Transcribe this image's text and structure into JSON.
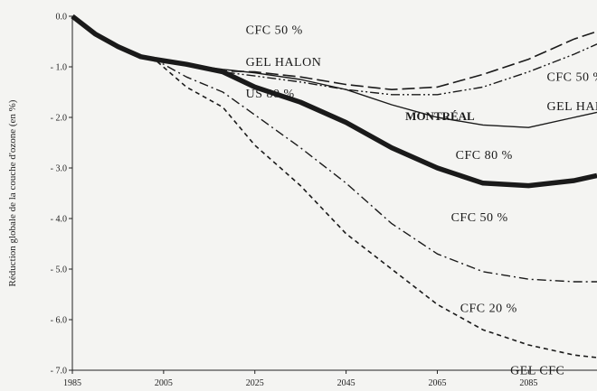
{
  "chart_data": {
    "type": "line",
    "ylabel": "Réduction globale de la couche d'ozone (en %)",
    "xlabel": "",
    "x_ticks": [
      "1985",
      "2005",
      "2025",
      "2045",
      "2065",
      "2085"
    ],
    "y_ticks": [
      "0.0",
      "- 1.0",
      "- 2.0",
      "- 3.0",
      "- 4.0",
      "- 5.0",
      "- 6.0",
      "- 7.0"
    ],
    "xlim": [
      1985,
      2100
    ],
    "ylim": [
      -7.0,
      0.0
    ],
    "grid": false,
    "series": [
      {
        "name": "CFC 50 % GEL HALON US 80 %",
        "label_lines": [
          "CFC 50 %",
          "GEL HALON",
          "US 80 %"
        ],
        "style": "long-dash",
        "x": [
          1985,
          1990,
          1995,
          2000,
          2003,
          2010,
          2018,
          2025,
          2035,
          2045,
          2055,
          2065,
          2075,
          2085,
          2095,
          2100
        ],
        "y": [
          0.0,
          -0.35,
          -0.6,
          -0.8,
          -0.85,
          -0.98,
          -1.08,
          -1.1,
          -1.2,
          -1.35,
          -1.45,
          -1.4,
          -1.15,
          -0.85,
          -0.45,
          -0.3
        ]
      },
      {
        "name": "CFC 50 % GEL HALON",
        "label_lines": [
          "CFC 50 %",
          "GEL HALON"
        ],
        "style": "dash-dot-dot",
        "x": [
          1985,
          1990,
          1995,
          2000,
          2003,
          2010,
          2018,
          2025,
          2035,
          2045,
          2055,
          2065,
          2075,
          2085,
          2095,
          2100
        ],
        "y": [
          0.0,
          -0.35,
          -0.6,
          -0.8,
          -0.85,
          -0.98,
          -1.1,
          -1.18,
          -1.3,
          -1.45,
          -1.55,
          -1.55,
          -1.4,
          -1.1,
          -0.75,
          -0.55
        ]
      },
      {
        "name": "MONTRÉAL",
        "label_lines": [
          "MONTRÉAL"
        ],
        "style": "thin-solid",
        "x": [
          1985,
          1990,
          1995,
          2000,
          2003,
          2010,
          2018,
          2025,
          2035,
          2045,
          2055,
          2065,
          2075,
          2085,
          2095,
          2100
        ],
        "y": [
          0.0,
          -0.35,
          -0.6,
          -0.8,
          -0.85,
          -0.95,
          -1.05,
          -1.12,
          -1.25,
          -1.45,
          -1.75,
          -2.0,
          -2.15,
          -2.2,
          -2.0,
          -1.9
        ]
      },
      {
        "name": "CFC 80 %",
        "label_lines": [
          "CFC 80 %"
        ],
        "style": "thick-solid",
        "x": [
          1985,
          1990,
          1995,
          2000,
          2003,
          2010,
          2018,
          2025,
          2035,
          2045,
          2055,
          2065,
          2075,
          2085,
          2095,
          2100
        ],
        "y": [
          0.0,
          -0.35,
          -0.6,
          -0.8,
          -0.85,
          -0.95,
          -1.1,
          -1.4,
          -1.7,
          -2.1,
          -2.6,
          -3.0,
          -3.3,
          -3.35,
          -3.25,
          -3.15
        ]
      },
      {
        "name": "CFC 50 %",
        "label_lines": [
          "CFC 50 %"
        ],
        "style": "dash-dot",
        "x": [
          1985,
          1990,
          1995,
          2000,
          2003,
          2010,
          2018,
          2025,
          2035,
          2045,
          2055,
          2065,
          2075,
          2085,
          2095,
          2100
        ],
        "y": [
          0.0,
          -0.35,
          -0.6,
          -0.8,
          -0.85,
          -1.2,
          -1.5,
          -1.95,
          -2.6,
          -3.3,
          -4.1,
          -4.7,
          -5.05,
          -5.2,
          -5.25,
          -5.25
        ]
      },
      {
        "name": "CFC 20 %",
        "label_lines": [
          "CFC 20 %"
        ],
        "style": "short-dash",
        "x": [
          1985,
          1990,
          1995,
          2000,
          2003,
          2010,
          2018,
          2025,
          2035,
          2045,
          2055,
          2065,
          2075,
          2085,
          2095,
          2100
        ],
        "y": [
          0.0,
          -0.35,
          -0.6,
          -0.8,
          -0.85,
          -1.4,
          -1.8,
          -2.55,
          -3.35,
          -4.3,
          -5.0,
          -5.7,
          -6.2,
          -6.5,
          -6.7,
          -6.75
        ]
      }
    ],
    "annotations": [
      {
        "text": "GEL CFC"
      }
    ]
  }
}
